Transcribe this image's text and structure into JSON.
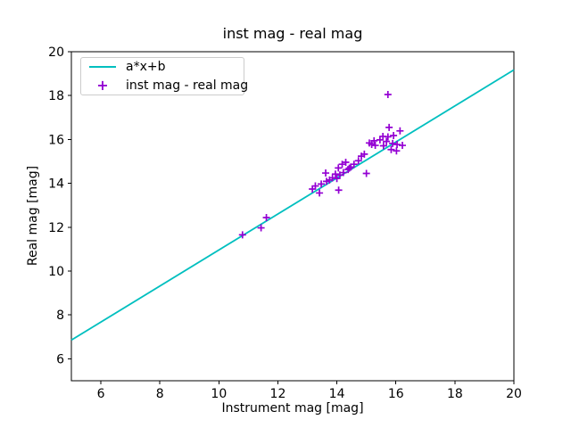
{
  "figure": {
    "title": "inst mag - real mag",
    "xlabel": "Instrument mag [mag]",
    "ylabel": "Real mag [mag]"
  },
  "legend": {
    "position": "upper left",
    "items": [
      {
        "label": "a*x+b",
        "marker": "line",
        "color": "#00bfbf"
      },
      {
        "label": "inst mag - real mag",
        "marker": "plus",
        "color": "#9400d3"
      }
    ]
  },
  "chart_data": {
    "type": "scatter",
    "title": "inst mag - real mag",
    "xlabel": "Instrument mag [mag]",
    "ylabel": "Real mag [mag]",
    "xlim": [
      5,
      20
    ],
    "ylim": [
      5,
      20
    ],
    "xticks": [
      6,
      8,
      10,
      12,
      14,
      16,
      18,
      20
    ],
    "yticks": [
      6,
      8,
      10,
      12,
      14,
      16,
      18,
      20
    ],
    "grid": false,
    "legend_position": "upper left",
    "series": [
      {
        "name": "a*x+b",
        "type": "line",
        "color": "#00bfbf",
        "slope": 0.821,
        "intercept": 2.75,
        "x_range": [
          5,
          20
        ]
      },
      {
        "name": "inst mag - real mag",
        "type": "scatter",
        "marker": "plus",
        "color": "#9400d3",
        "points": [
          [
            10.8,
            11.65
          ],
          [
            11.43,
            11.97
          ],
          [
            11.61,
            12.44
          ],
          [
            13.17,
            13.74
          ],
          [
            13.27,
            13.88
          ],
          [
            13.41,
            13.56
          ],
          [
            13.47,
            13.97
          ],
          [
            13.62,
            14.47
          ],
          [
            13.65,
            14.09
          ],
          [
            13.75,
            14.15
          ],
          [
            13.85,
            14.25
          ],
          [
            13.95,
            14.42
          ],
          [
            14.0,
            14.22
          ],
          [
            14.05,
            14.7
          ],
          [
            14.06,
            13.69
          ],
          [
            14.1,
            14.38
          ],
          [
            14.18,
            14.87
          ],
          [
            14.22,
            14.49
          ],
          [
            14.3,
            14.96
          ],
          [
            14.38,
            14.63
          ],
          [
            14.42,
            14.69
          ],
          [
            14.47,
            14.74
          ],
          [
            14.58,
            14.87
          ],
          [
            14.73,
            15.03
          ],
          [
            14.83,
            15.24
          ],
          [
            14.93,
            15.33
          ],
          [
            15.0,
            14.45
          ],
          [
            15.1,
            15.84
          ],
          [
            15.18,
            15.77
          ],
          [
            15.26,
            15.94
          ],
          [
            15.3,
            15.73
          ],
          [
            15.46,
            15.98
          ],
          [
            15.56,
            16.14
          ],
          [
            15.58,
            15.71
          ],
          [
            15.68,
            15.91
          ],
          [
            15.73,
            16.12
          ],
          [
            15.73,
            18.05
          ],
          [
            15.77,
            16.55
          ],
          [
            15.84,
            15.54
          ],
          [
            15.89,
            15.82
          ],
          [
            15.92,
            16.18
          ],
          [
            16.02,
            15.48
          ],
          [
            16.04,
            15.77
          ],
          [
            16.14,
            16.39
          ],
          [
            16.22,
            15.73
          ]
        ]
      }
    ]
  }
}
